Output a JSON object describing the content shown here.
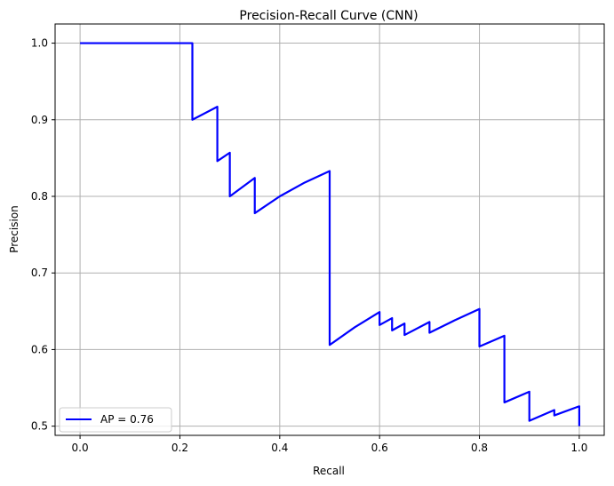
{
  "chart_data": {
    "type": "line",
    "title": "Precision-Recall Curve (CNN)",
    "xlabel": "Recall",
    "ylabel": "Precision",
    "xlim": [
      -0.05,
      1.05
    ],
    "ylim": [
      0.488,
      1.025
    ],
    "xticks": [
      0.0,
      0.2,
      0.4,
      0.6,
      0.8,
      1.0
    ],
    "xtick_labels": [
      "0.0",
      "0.2",
      "0.4",
      "0.6",
      "0.8",
      "1.0"
    ],
    "yticks": [
      0.5,
      0.6,
      0.7,
      0.8,
      0.9,
      1.0
    ],
    "ytick_labels": [
      "0.5",
      "0.6",
      "0.7",
      "0.8",
      "0.9",
      "1.0"
    ],
    "grid": true,
    "legend_position": "lower-left",
    "series": [
      {
        "name": "AP = 0.76",
        "color": "#0000ff",
        "x": [
          0.0,
          0.225,
          0.225,
          0.275,
          0.275,
          0.3,
          0.3,
          0.35,
          0.35,
          0.4,
          0.45,
          0.5,
          0.5,
          0.55,
          0.6,
          0.6,
          0.625,
          0.625,
          0.65,
          0.65,
          0.7,
          0.7,
          0.75,
          0.8,
          0.8,
          0.85,
          0.85,
          0.9,
          0.9,
          0.95,
          0.95,
          1.0,
          1.0
        ],
        "y": [
          1.0,
          1.0,
          0.9,
          0.917,
          0.846,
          0.857,
          0.8,
          0.824,
          0.778,
          0.8,
          0.818,
          0.833,
          0.606,
          0.629,
          0.649,
          0.632,
          0.641,
          0.625,
          0.634,
          0.619,
          0.636,
          0.622,
          0.638,
          0.653,
          0.604,
          0.618,
          0.531,
          0.545,
          0.507,
          0.521,
          0.514,
          0.526,
          0.5
        ]
      }
    ]
  }
}
